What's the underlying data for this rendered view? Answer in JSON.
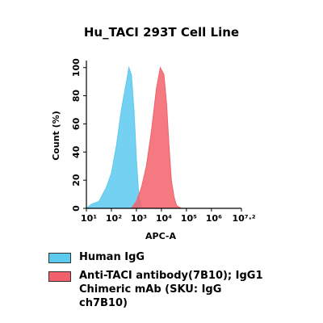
{
  "chart_data": {
    "type": "area",
    "title": "Hu_TACI 293T Cell Line",
    "x_label": "APC-A",
    "y_label": "Count (%)",
    "x_log_scale": true,
    "xlim": [
      10,
      15848932
    ],
    "xticks": [
      {
        "value": 10,
        "label": "10¹"
      },
      {
        "value": 100,
        "label": "10²"
      },
      {
        "value": 1000,
        "label": "10³"
      },
      {
        "value": 10000,
        "label": "10⁴"
      },
      {
        "value": 100000,
        "label": "10⁵"
      },
      {
        "value": 1000000,
        "label": "10⁶"
      },
      {
        "value": 15848932,
        "label": "10⁷·²"
      }
    ],
    "ylim": [
      0,
      105
    ],
    "yticks": [
      0,
      20,
      40,
      60,
      80,
      100
    ],
    "series": [
      {
        "name": "Human IgG",
        "color": "#5cc9ef",
        "x": [
          10,
          16,
          32,
          63,
          100,
          160,
          250,
          400,
          500,
          630,
          800,
          1000,
          1260,
          1600
        ],
        "values": [
          0,
          3,
          5,
          15,
          25,
          45,
          70,
          90,
          100,
          95,
          70,
          35,
          8,
          0
        ]
      },
      {
        "name": "Anti-TACI antibody(7B10); IgG1 Chimeric mAb (SKU: IgG ch7B10)",
        "color": "#f2616b",
        "x": [
          630,
          1000,
          1600,
          2500,
          4000,
          6300,
          9000,
          12600,
          16000,
          20000,
          25000,
          32000,
          40000,
          63000
        ],
        "values": [
          0,
          5,
          15,
          30,
          55,
          85,
          100,
          95,
          75,
          45,
          20,
          8,
          2,
          0
        ]
      }
    ]
  }
}
